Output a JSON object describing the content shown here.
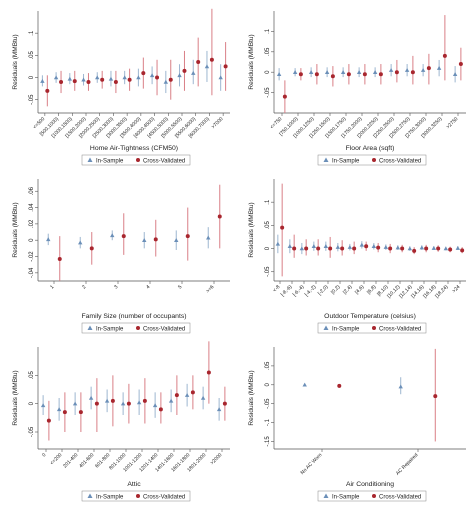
{
  "colors": {
    "in_sample": "#6b8fb8",
    "cross_validated": "#a8262e",
    "in_sample_ci": "#9db6d0",
    "cross_validated_ci": "#d97f86"
  },
  "legend": {
    "in_sample": "In-Sample",
    "cross_validated": "Cross-Validated"
  },
  "chart_data": [
    {
      "type": "scatter",
      "xlabel": "Home Air-Tightness (CFM50)",
      "ylabel": "Residuals (MMBtu)",
      "ylim": [
        -0.08,
        0.15
      ],
      "yticks": [
        -0.05,
        0,
        0.05,
        0.1
      ],
      "yticklabels": [
        "-.05",
        "0",
        ".05",
        ".1"
      ],
      "categories": [
        "<=500",
        "[500,1000)",
        "[1000,1500)",
        "[1500,2000)",
        "[2000,2500)",
        "[2500,3000)",
        "[3000,3500)",
        "[3500,4000)",
        "[4000,4500)",
        "[4500,5000)",
        "[5000,5500)",
        "[5500,6000)",
        "[6000,7000)",
        ">7000"
      ],
      "series": [
        {
          "name": "In-Sample",
          "values": [
            -0.008,
            0.0,
            -0.003,
            -0.005,
            0.0,
            -0.003,
            0.0,
            0.0,
            0.005,
            -0.01,
            0.005,
            0.01,
            0.025,
            0.0
          ],
          "lower": [
            -0.02,
            -0.012,
            -0.015,
            -0.018,
            -0.012,
            -0.02,
            -0.015,
            -0.02,
            -0.015,
            -0.035,
            -0.02,
            -0.015,
            -0.01,
            -0.03
          ],
          "upper": [
            0.005,
            0.012,
            0.01,
            0.008,
            0.012,
            0.015,
            0.015,
            0.02,
            0.025,
            0.015,
            0.03,
            0.04,
            0.06,
            0.03
          ]
        },
        {
          "name": "Cross-Validated",
          "values": [
            -0.03,
            -0.01,
            -0.008,
            -0.01,
            -0.005,
            -0.01,
            -0.005,
            0.01,
            0.0,
            -0.005,
            0.015,
            0.035,
            0.04,
            0.025
          ],
          "lower": [
            -0.065,
            -0.035,
            -0.03,
            -0.03,
            -0.025,
            -0.035,
            -0.03,
            -0.025,
            -0.04,
            -0.05,
            -0.03,
            -0.02,
            -0.04,
            -0.03
          ],
          "upper": [
            0.005,
            0.015,
            0.015,
            0.01,
            0.015,
            0.015,
            0.02,
            0.045,
            0.04,
            0.04,
            0.06,
            0.09,
            0.155,
            0.08
          ]
        }
      ]
    },
    {
      "type": "scatter",
      "xlabel": "Floor Area (sqft)",
      "ylabel": "Residuals (MMBtu)",
      "ylim": [
        -0.1,
        0.15
      ],
      "yticks": [
        -0.05,
        0,
        0.05,
        0.1
      ],
      "yticklabels": [
        "-.05",
        "0",
        ".05",
        ".1"
      ],
      "categories": [
        "<=750",
        "[750,1000)",
        "[1000,1250)",
        "[1250,1500)",
        "[1500,1750)",
        "[1750,2000)",
        "[2000,2250)",
        "[2250,2500)",
        "[2500,2750)",
        "[2750,3000)",
        "[3000,3250)",
        ">2750"
      ],
      "series": [
        {
          "name": "In-Sample",
          "values": [
            -0.005,
            0.0,
            0.0,
            0.0,
            0.0,
            0.0,
            0.0,
            0.005,
            0.005,
            0.005,
            0.01,
            -0.005
          ],
          "lower": [
            -0.02,
            -0.01,
            -0.012,
            -0.012,
            -0.012,
            -0.012,
            -0.012,
            -0.01,
            -0.01,
            -0.01,
            -0.01,
            -0.025
          ],
          "upper": [
            0.01,
            0.01,
            0.012,
            0.012,
            0.012,
            0.012,
            0.012,
            0.02,
            0.02,
            0.02,
            0.03,
            0.015
          ]
        },
        {
          "name": "Cross-Validated",
          "values": [
            -0.06,
            -0.005,
            -0.005,
            -0.01,
            -0.005,
            -0.005,
            -0.005,
            0.0,
            0.0,
            0.01,
            0.04,
            0.02
          ],
          "lower": [
            -0.1,
            -0.02,
            -0.03,
            -0.035,
            -0.03,
            -0.03,
            -0.03,
            -0.025,
            -0.03,
            -0.03,
            -0.02,
            -0.02
          ],
          "upper": [
            -0.02,
            0.01,
            0.02,
            0.015,
            0.02,
            0.02,
            0.02,
            0.03,
            0.04,
            0.045,
            0.14,
            0.06
          ]
        }
      ]
    },
    {
      "type": "scatter",
      "xlabel": "Family Size (number of occupants)",
      "ylabel": "Residuals (MMBtu)",
      "ylim": [
        -0.05,
        0.075
      ],
      "yticks": [
        -0.04,
        -0.02,
        0,
        0.02,
        0.04,
        0.06
      ],
      "yticklabels": [
        "-.04",
        "-.02",
        "0",
        ".02",
        ".04",
        ".06"
      ],
      "categories": [
        "1",
        "2",
        "3",
        "4",
        "5",
        ">=6"
      ],
      "series": [
        {
          "name": "In-Sample",
          "values": [
            0.001,
            -0.003,
            0.006,
            0.0,
            0.0,
            0.003
          ],
          "lower": [
            -0.006,
            -0.01,
            0.0,
            -0.01,
            -0.012,
            -0.01
          ],
          "upper": [
            0.008,
            0.004,
            0.012,
            0.01,
            0.012,
            0.016
          ]
        },
        {
          "name": "Cross-Validated",
          "values": [
            -0.023,
            -0.01,
            0.005,
            0.001,
            0.005,
            0.029
          ],
          "lower": [
            -0.05,
            -0.03,
            -0.018,
            -0.02,
            -0.025,
            -0.01
          ],
          "upper": [
            0.005,
            0.01,
            0.033,
            0.025,
            0.04,
            0.068
          ]
        }
      ]
    },
    {
      "type": "scatter",
      "xlabel": "Outdoor Temperature (celsius)",
      "ylabel": "Residuals (MMBtu)",
      "ylim": [
        -0.07,
        0.15
      ],
      "yticks": [
        -0.05,
        0,
        0.05,
        0.1
      ],
      "yticklabels": [
        "-.05",
        "0",
        ".05",
        ".1"
      ],
      "categories": [
        "<-8",
        "[-8,-6)",
        "[-6,-4)",
        "[-4,-2)",
        "[-2,0)",
        "[0,2)",
        "[2,4)",
        "[4,6)",
        "[6,8)",
        "[8,10)",
        "[10,12)",
        "[12,14)",
        "[14,16)",
        "[16,18)",
        "[18,24)",
        ">24"
      ],
      "series": [
        {
          "name": "In-Sample",
          "values": [
            0.01,
            0.005,
            0.0,
            0.005,
            0.005,
            0.003,
            0.003,
            0.008,
            0.005,
            0.003,
            0.002,
            0.0,
            0.002,
            0.001,
            0.0,
            0.001
          ],
          "lower": [
            -0.01,
            -0.01,
            -0.012,
            -0.005,
            -0.005,
            -0.006,
            -0.004,
            0.0,
            -0.002,
            -0.003,
            -0.003,
            -0.005,
            -0.003,
            -0.003,
            -0.004,
            -0.003
          ],
          "upper": [
            0.03,
            0.02,
            0.012,
            0.015,
            0.015,
            0.012,
            0.01,
            0.016,
            0.012,
            0.009,
            0.007,
            0.005,
            0.007,
            0.005,
            0.004,
            0.005
          ]
        },
        {
          "name": "Cross-Validated",
          "values": [
            0.045,
            0.0,
            0.0,
            0.0,
            0.0,
            0.0,
            0.0,
            0.005,
            0.002,
            0.0,
            0.0,
            -0.005,
            0.0,
            0.0,
            -0.002,
            -0.004
          ],
          "lower": [
            -0.06,
            -0.02,
            -0.015,
            -0.015,
            -0.02,
            -0.015,
            -0.012,
            -0.005,
            -0.008,
            -0.01,
            -0.008,
            -0.012,
            -0.008,
            -0.007,
            -0.008,
            -0.01
          ],
          "upper": [
            0.14,
            0.03,
            0.02,
            0.02,
            0.025,
            0.018,
            0.015,
            0.015,
            0.012,
            0.01,
            0.008,
            0.003,
            0.008,
            0.007,
            0.004,
            0.003
          ]
        }
      ]
    },
    {
      "type": "scatter",
      "xlabel": "Attic",
      "ylabel": "Residuals (MMBtu)",
      "ylim": [
        -0.08,
        0.1
      ],
      "yticks": [
        -0.05,
        0,
        0.05
      ],
      "yticklabels": [
        "-.05",
        "0",
        ".05"
      ],
      "categories": [
        "0",
        "<=200",
        "201-400",
        "401-600",
        "601-800",
        "801-1000",
        "1001-1200",
        "1201-1400",
        "1401-1600",
        "1601-1800",
        "1801-2000",
        ">2000"
      ],
      "series": [
        {
          "name": "In-Sample",
          "values": [
            -0.003,
            -0.01,
            0.0,
            0.01,
            0.005,
            0.0,
            0.002,
            -0.003,
            0.005,
            0.015,
            0.01,
            -0.01
          ],
          "lower": [
            -0.02,
            -0.03,
            -0.02,
            -0.01,
            -0.015,
            -0.02,
            -0.02,
            -0.025,
            -0.015,
            -0.005,
            -0.01,
            -0.03
          ],
          "upper": [
            0.015,
            0.01,
            0.02,
            0.03,
            0.025,
            0.02,
            0.025,
            0.02,
            0.025,
            0.035,
            0.03,
            0.01
          ]
        },
        {
          "name": "Cross-Validated",
          "values": [
            -0.03,
            -0.015,
            -0.015,
            0.0,
            0.005,
            0.0,
            0.005,
            -0.01,
            0.015,
            0.02,
            0.055,
            0.0
          ],
          "lower": [
            -0.065,
            -0.05,
            -0.05,
            -0.05,
            -0.04,
            -0.035,
            -0.035,
            -0.035,
            -0.02,
            -0.01,
            0.0,
            -0.03
          ],
          "upper": [
            0.005,
            0.02,
            0.02,
            0.045,
            0.05,
            0.035,
            0.045,
            0.02,
            0.05,
            0.05,
            0.11,
            0.03
          ]
        }
      ]
    },
    {
      "type": "scatter",
      "xlabel": "Air Conditioning",
      "ylabel": "Residuals (MMBtu)",
      "ylim": [
        -0.17,
        0.1
      ],
      "yticks": [
        -0.15,
        -0.1,
        -0.05,
        0,
        0.05
      ],
      "yticklabels": [
        "-.15",
        "-.1",
        "-.05",
        "0",
        ".05"
      ],
      "categories": [
        "No AC Worn",
        "AC Repaired"
      ],
      "series": [
        {
          "name": "In-Sample",
          "values": [
            0.0,
            -0.005
          ],
          "lower": [
            -0.002,
            -0.025
          ],
          "upper": [
            0.002,
            0.02
          ]
        },
        {
          "name": "Cross-Validated",
          "values": [
            -0.003,
            -0.03
          ],
          "lower": [
            -0.008,
            -0.15
          ],
          "upper": [
            0.002,
            0.095
          ]
        }
      ]
    }
  ]
}
